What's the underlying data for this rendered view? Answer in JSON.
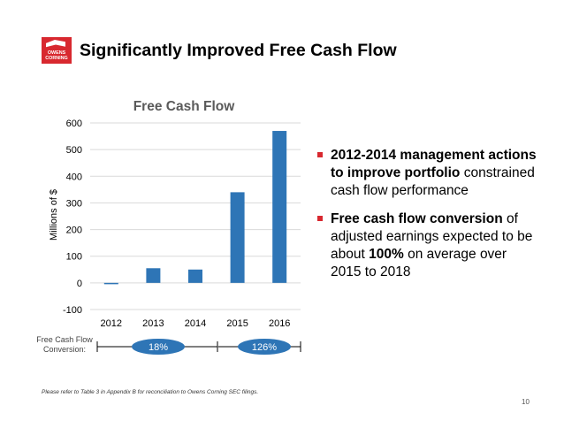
{
  "logo": {
    "line1": "OWENS",
    "line2": "CORNING"
  },
  "header": {
    "title": "Significantly Improved Free Cash Flow"
  },
  "chart_data": {
    "type": "bar",
    "title": "Free Cash Flow",
    "xlabel": "",
    "ylabel": "Millions of $",
    "categories": [
      "2012",
      "2013",
      "2014",
      "2015",
      "2016"
    ],
    "values": [
      -5,
      55,
      50,
      340,
      570
    ],
    "ylim": [
      -100,
      600
    ],
    "yticks": [
      600,
      500,
      400,
      300,
      200,
      100,
      0,
      -100
    ],
    "grid": true,
    "bar_color": "#2e75b6"
  },
  "conversion": {
    "label_line1": "Free Cash Flow",
    "label_line2": "Conversion:",
    "badge1": "18%",
    "badge2": "126%"
  },
  "bullets": {
    "b1_bold": "2012-2014 management actions to improve portfolio",
    "b1_rest": " constrained cash flow performance",
    "b2_bold": "Free cash flow conversion",
    "b2_rest_a": " of adjusted earnings expected to be about ",
    "b2_pct": "100%",
    "b2_rest_b": " on average over 2015 to 2018"
  },
  "footnote": "Please refer to Table 3 in Appendix B for reconciliation to Owens Corning SEC filings.",
  "page_number": "10",
  "colors": {
    "accent": "#d8282f",
    "bar": "#2e75b6",
    "badge": "#2e75b6"
  }
}
